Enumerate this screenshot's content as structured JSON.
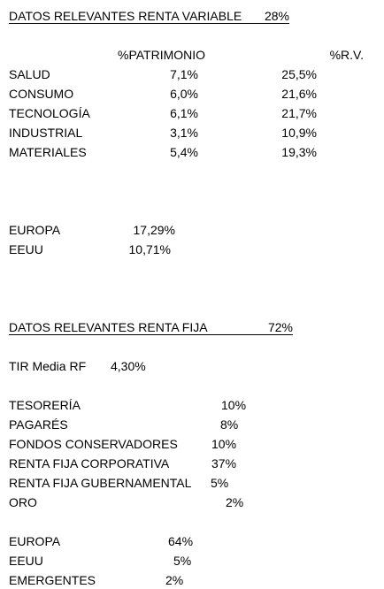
{
  "variable": {
    "title": "DATOS RELEVANTES RENTA VARIABLE",
    "title_value": "28%",
    "headers": [
      "%PATRIMONIO",
      "%R.V."
    ],
    "rows": [
      [
        "SALUD",
        "7,1%",
        "25,5%"
      ],
      [
        "CONSUMO",
        "6,0%",
        "21,6%"
      ],
      [
        "TECNOLOGÍA",
        "6,1%",
        "21,7%"
      ],
      [
        "INDUSTRIAL",
        "3,1%",
        "10,9%"
      ],
      [
        "MATERIALES",
        "5,4%",
        "19,3%"
      ]
    ],
    "regions": [
      [
        "EUROPA",
        "17,29%"
      ],
      [
        "EEUU",
        "10,71%"
      ]
    ]
  },
  "fija": {
    "title": "DATOS RELEVANTES RENTA FIJA",
    "title_value": "72%",
    "tir": [
      "TIR Media RF",
      "4,30%"
    ],
    "rows": [
      [
        "TESORERÍA",
        "10%"
      ],
      [
        "PAGARÉS",
        "8%"
      ],
      [
        "FONDOS CONSERVADORES",
        "10%"
      ],
      [
        "RENTA FIJA CORPORATIVA",
        "37%"
      ],
      [
        "RENTA FIJA GUBERNAMENTAL",
        "5%"
      ],
      [
        "ORO",
        "2%"
      ]
    ],
    "regions": [
      [
        "EUROPA",
        "64%"
      ],
      [
        "EEUU",
        "5%"
      ],
      [
        "EMERGENTES",
        "2%"
      ]
    ]
  }
}
